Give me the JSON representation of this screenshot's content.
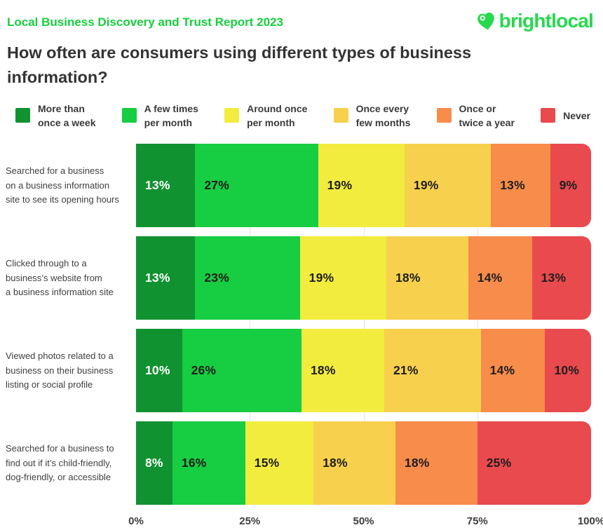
{
  "header": {
    "report_title": "Local Business Discovery and Trust Report 2023",
    "logo_text": "brightlocal"
  },
  "title": "How often are consumers using different types of business information?",
  "colors": {
    "report_title_green": "#17CE3E",
    "logo_green": "#26D94F",
    "title_text": "#333333",
    "gridline": "#E2E2E2"
  },
  "chart_data": {
    "type": "bar",
    "stacked": true,
    "orientation": "horizontal",
    "value_suffix": "%",
    "xlim": [
      0,
      100
    ],
    "x_ticks": [
      "0%",
      "25%",
      "50%",
      "75%",
      "100%"
    ],
    "gridlines_at": [
      25,
      50,
      75
    ],
    "legend_position": "top",
    "categories": [
      "Searched for a business\non a business information\nsite to see its opening hours",
      "Clicked through to a\nbusiness’s website from\na business information site",
      "Viewed photos related to a\nbusiness on their business\nlisting or social profile",
      "Searched for a business to\nfind out if it’s child-friendly,\ndog-friendly, or accessible"
    ],
    "series": [
      {
        "name": "More than once a week",
        "legend_label": "More than\nonce a week",
        "color": "#119230",
        "text_color": "#FFFFFF",
        "values": [
          13,
          13,
          10,
          8
        ]
      },
      {
        "name": "A few times per month",
        "legend_label": "A few times\nper month",
        "color": "#17CD42",
        "text_color": "#1E1E1E",
        "values": [
          27,
          23,
          26,
          16
        ]
      },
      {
        "name": "Around once per month",
        "legend_label": "Around once\nper month",
        "color": "#F2EC3E",
        "text_color": "#1E1E1E",
        "values": [
          19,
          19,
          18,
          15
        ]
      },
      {
        "name": "Once every few months",
        "legend_label": "Once every\nfew months",
        "color": "#F7D14D",
        "text_color": "#1E1E1E",
        "values": [
          19,
          18,
          21,
          18
        ]
      },
      {
        "name": "Once or twice a year",
        "legend_label": "Once or\ntwice a year",
        "color": "#F78C4B",
        "text_color": "#1E1E1E",
        "values": [
          13,
          14,
          14,
          18
        ]
      },
      {
        "name": "Never",
        "legend_label": "Never",
        "color": "#E84A4D",
        "text_color": "#1E1E1E",
        "values": [
          9,
          13,
          10,
          25
        ]
      }
    ]
  }
}
